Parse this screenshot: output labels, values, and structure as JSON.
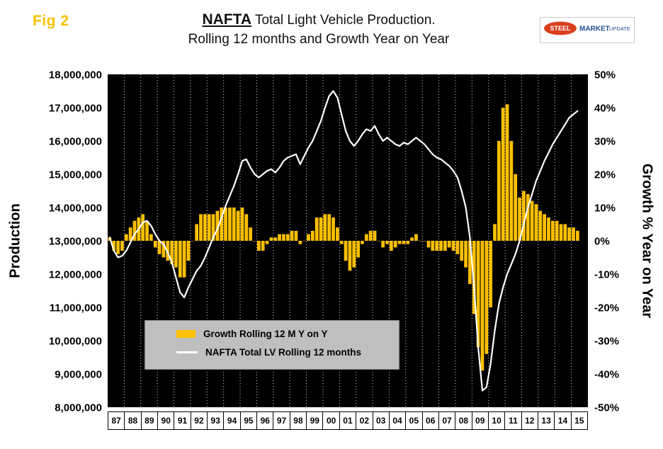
{
  "fig_label": "Fig 2",
  "title": {
    "emphasis": "NAFTA",
    "line1_rest": " Total Light Vehicle Production.",
    "line2": "Rolling 12 months and Growth Year on Year"
  },
  "logo": {
    "steel": "STEEL",
    "market": "MARKET",
    "update": "UPDATE"
  },
  "legend": {
    "items": [
      {
        "label": "Growth Rolling 12 M Y on Y",
        "swatch_color": "#FFC000",
        "type": "bar"
      },
      {
        "label": "NAFTA Total LV Rolling 12 months",
        "swatch_color": "#FFFFFF",
        "type": "line"
      }
    ]
  },
  "colors": {
    "plot_background": "#000000",
    "bar": "#FFC000",
    "line": "#FFFFFF",
    "gridline": "#FFFFFF",
    "legend_background": "#BFBFBF",
    "fig_label": "#F5C200",
    "logo_red": "#D9401F",
    "logo_blue": "#1F4E99"
  },
  "chart_data": {
    "type": "combo_bar_line",
    "x_start": 1987.0,
    "x_step_years": 0.25,
    "x_tick_labels": [
      "87",
      "88",
      "89",
      "90",
      "91",
      "92",
      "93",
      "94",
      "95",
      "96",
      "97",
      "98",
      "99",
      "00",
      "01",
      "02",
      "03",
      "04",
      "05",
      "06",
      "07",
      "08",
      "09",
      "10",
      "11",
      "12",
      "13",
      "14",
      "15"
    ],
    "left_axis": {
      "label": "Production",
      "min": 8000000,
      "max": 18000000,
      "tick_step": 1000000,
      "tick_labels": [
        "18,000,000",
        "17,000,000",
        "16,000,000",
        "15,000,000",
        "14,000,000",
        "13,000,000",
        "12,000,000",
        "11,000,000",
        "10,000,000",
        "9,000,000",
        "8,000,000"
      ]
    },
    "right_axis": {
      "label": "Growth % Year on Year",
      "min": -50,
      "max": 50,
      "tick_step": 10,
      "tick_labels": [
        "50%",
        "40%",
        "30%",
        "20%",
        "10%",
        "0%",
        "-10%",
        "-20%",
        "-30%",
        "-40%",
        "-50%"
      ]
    },
    "grid": {
      "vertical": true,
      "horizontal": false
    },
    "legend_position": "inside-lower-left",
    "series": [
      {
        "name": "Growth Rolling 12 M Y on Y",
        "type": "bar",
        "axis": "right",
        "unit": "%",
        "color": "#FFC000",
        "values": [
          1,
          -3,
          -4,
          -3,
          2,
          4,
          6,
          7,
          8,
          6,
          2,
          -2,
          -4,
          -5,
          -6,
          -7,
          -8,
          -11,
          -11,
          -6,
          0,
          5,
          8,
          8,
          8,
          8,
          9,
          10,
          10,
          10,
          10,
          9,
          10,
          8,
          4,
          0,
          -3,
          -3,
          -1,
          1,
          1,
          2,
          2,
          2,
          3,
          3,
          -1,
          0,
          2,
          3,
          7,
          7,
          8,
          8,
          7,
          4,
          -1,
          -6,
          -9,
          -8,
          -5,
          -1,
          2,
          3,
          3,
          0,
          -2,
          -1,
          -3,
          -2,
          -1,
          -1,
          -1,
          1,
          2,
          0,
          0,
          -2,
          -3,
          -3,
          -3,
          -3,
          -2,
          -3,
          -4,
          -6,
          -8,
          -13,
          -22,
          -32,
          -39,
          -34,
          -20,
          5,
          30,
          40,
          41,
          30,
          20,
          13,
          15,
          14,
          12,
          11,
          9,
          8,
          7,
          6,
          6,
          5,
          5,
          4,
          4,
          3
        ]
      },
      {
        "name": "NAFTA Total LV Rolling 12 months",
        "type": "line",
        "axis": "left",
        "unit": "vehicles (millions)",
        "color": "#FFFFFF",
        "values_millions": [
          13.1,
          12.7,
          12.5,
          12.55,
          12.7,
          12.95,
          13.2,
          13.35,
          13.55,
          13.6,
          13.45,
          13.2,
          13.0,
          12.9,
          12.65,
          12.35,
          11.9,
          11.45,
          11.3,
          11.6,
          11.85,
          12.1,
          12.25,
          12.5,
          12.8,
          13.1,
          13.35,
          13.7,
          14.05,
          14.35,
          14.65,
          15.0,
          15.4,
          15.45,
          15.2,
          15.0,
          14.9,
          15.0,
          15.1,
          15.15,
          15.05,
          15.2,
          15.4,
          15.5,
          15.55,
          15.6,
          15.3,
          15.55,
          15.8,
          16.0,
          16.3,
          16.6,
          17.0,
          17.35,
          17.5,
          17.3,
          16.8,
          16.3,
          16.0,
          15.85,
          16.0,
          16.2,
          16.35,
          16.3,
          16.45,
          16.2,
          16.0,
          16.1,
          16.0,
          15.9,
          15.85,
          15.95,
          15.9,
          16.0,
          16.1,
          16.0,
          15.9,
          15.75,
          15.6,
          15.5,
          15.45,
          15.35,
          15.25,
          15.1,
          14.9,
          14.5,
          14.0,
          13.1,
          11.6,
          9.8,
          8.5,
          8.6,
          9.3,
          10.3,
          11.1,
          11.6,
          12.0,
          12.3,
          12.6,
          13.0,
          13.5,
          14.0,
          14.4,
          14.8,
          15.1,
          15.4,
          15.65,
          15.9,
          16.1,
          16.3,
          16.5,
          16.7,
          16.8,
          16.9
        ]
      }
    ]
  }
}
